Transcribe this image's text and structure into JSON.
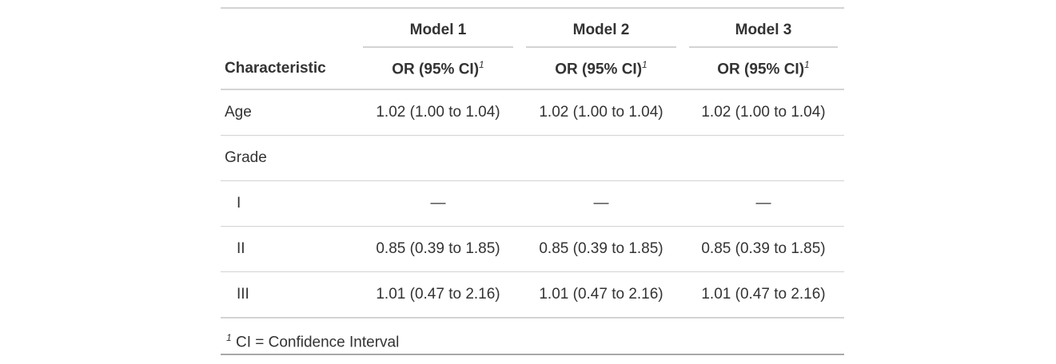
{
  "table": {
    "spanners": [
      "Model 1",
      "Model 2",
      "Model 3"
    ],
    "stub_header": "Characteristic",
    "column_label": "OR (95% CI)",
    "column_label_footnote": "1",
    "rows": [
      {
        "label": "Age",
        "values": [
          "1.02 (1.00 to 1.04)",
          "1.02 (1.00 to 1.04)",
          "1.02 (1.00 to 1.04)"
        ]
      },
      {
        "label": "Grade",
        "levels": [
          {
            "label": "I",
            "values": [
              "—",
              "—",
              "—"
            ]
          },
          {
            "label": "II",
            "values": [
              "0.85 (0.39 to 1.85)",
              "0.85 (0.39 to 1.85)",
              "0.85 (0.39 to 1.85)"
            ]
          },
          {
            "label": "III",
            "values": [
              "1.01 (0.47 to 2.16)",
              "1.01 (0.47 to 2.16)",
              "1.01 (0.47 to 2.16)"
            ]
          }
        ]
      }
    ],
    "footnote": {
      "mark": "1",
      "text": "CI = Confidence Interval"
    }
  }
}
